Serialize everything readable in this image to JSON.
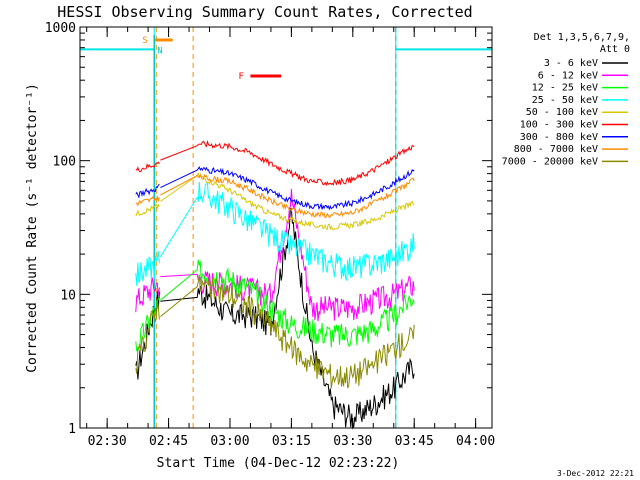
{
  "chart_data": {
    "type": "line",
    "title": "HESSI Observing Summary Count Rates, Corrected",
    "xlabel": "Start Time (04-Dec-12 02:23:22)",
    "ylabel": "Corrected Count Rate (s⁻¹ detector⁻¹)",
    "x_unit": "UT time",
    "xlim": [
      "02:23:22",
      "04:04:00"
    ],
    "ylim": [
      1,
      1000
    ],
    "yscale": "log",
    "x_ticks": [
      "02:30",
      "02:45",
      "03:00",
      "03:15",
      "03:30",
      "03:45",
      "04:00"
    ],
    "y_ticks": [
      "1",
      "10",
      "100",
      "1000"
    ],
    "legend_header": [
      "Det 1,3,5,6,7,9,",
      "Att 0"
    ],
    "legend_position": "right",
    "footer": "3-Dec-2012 22:21",
    "flags": {
      "S": {
        "label": "S",
        "color": "#ff8c00",
        "start": "02:41:30",
        "end": "02:46:00",
        "value": 800
      },
      "N": {
        "label": "N",
        "color": "#00c8c8",
        "start": "02:41:30",
        "end": "02:42:30",
        "value": 680
      },
      "F": {
        "label": "F",
        "color": "#ff0000",
        "start": "03:05:00",
        "end": "03:12:30",
        "value": 430
      }
    },
    "night_periods": [
      {
        "start": "02:23:22",
        "end": "02:41:30",
        "value": 680,
        "color": "#00e5e5"
      },
      {
        "start": "03:40:30",
        "end": "04:04:00",
        "value": 680,
        "color": "#00e5e5"
      }
    ],
    "cyan_dashed_lines": [
      "03:40:30",
      "04:04:00"
    ],
    "orange_dashed_lines": [
      "02:42:00",
      "02:51:00"
    ],
    "data_gaps": [
      {
        "start": "02:43:00",
        "end": "02:52:00"
      }
    ],
    "x": [
      "02:37",
      "02:42",
      "02:52",
      "03:00",
      "03:05",
      "03:10",
      "03:15",
      "03:20",
      "03:25",
      "03:30",
      "03:35",
      "03:40",
      "03:45"
    ],
    "series": [
      {
        "name": "3 - 6 keV",
        "color": "#000000",
        "values": [
          2.5,
          9,
          11,
          7,
          7,
          6,
          40,
          4,
          1.5,
          1.2,
          1.5,
          2,
          3
        ]
      },
      {
        "name": "6 - 12 keV",
        "color": "#ff00ff",
        "values": [
          9,
          12,
          13,
          12,
          11,
          10,
          55,
          8,
          8,
          8,
          9,
          10,
          12
        ]
      },
      {
        "name": "12 - 25 keV",
        "color": "#00ff00",
        "values": [
          4,
          8,
          15,
          13,
          11,
          8,
          6,
          5.5,
          5,
          5,
          5.5,
          7,
          10
        ]
      },
      {
        "name": "25 - 50 keV",
        "color": "#00ffff",
        "values": [
          14,
          17,
          62,
          45,
          35,
          28,
          23,
          20,
          17,
          16,
          17,
          19,
          24
        ]
      },
      {
        "name": "50 - 100 keV",
        "color": "#d8c800",
        "values": [
          40,
          45,
          78,
          60,
          48,
          40,
          36,
          33,
          32,
          33,
          36,
          42,
          48
        ]
      },
      {
        "name": "100 - 300 keV",
        "color": "#ff0000",
        "values": [
          85,
          95,
          135,
          128,
          115,
          95,
          80,
          70,
          68,
          72,
          85,
          105,
          130
        ]
      },
      {
        "name": "300 - 800 keV",
        "color": "#0000ff",
        "values": [
          55,
          62,
          88,
          80,
          70,
          58,
          50,
          46,
          45,
          48,
          56,
          68,
          85
        ]
      },
      {
        "name": "800 - 7000 keV",
        "color": "#ff8c00",
        "values": [
          48,
          52,
          76,
          70,
          60,
          50,
          43,
          40,
          39,
          41,
          48,
          58,
          72
        ]
      },
      {
        "name": "7000 - 20000 keV",
        "color": "#8b8b00",
        "values": [
          3,
          8,
          12,
          10,
          8,
          6,
          4,
          3,
          2.5,
          2.5,
          3,
          4,
          5
        ]
      }
    ]
  }
}
